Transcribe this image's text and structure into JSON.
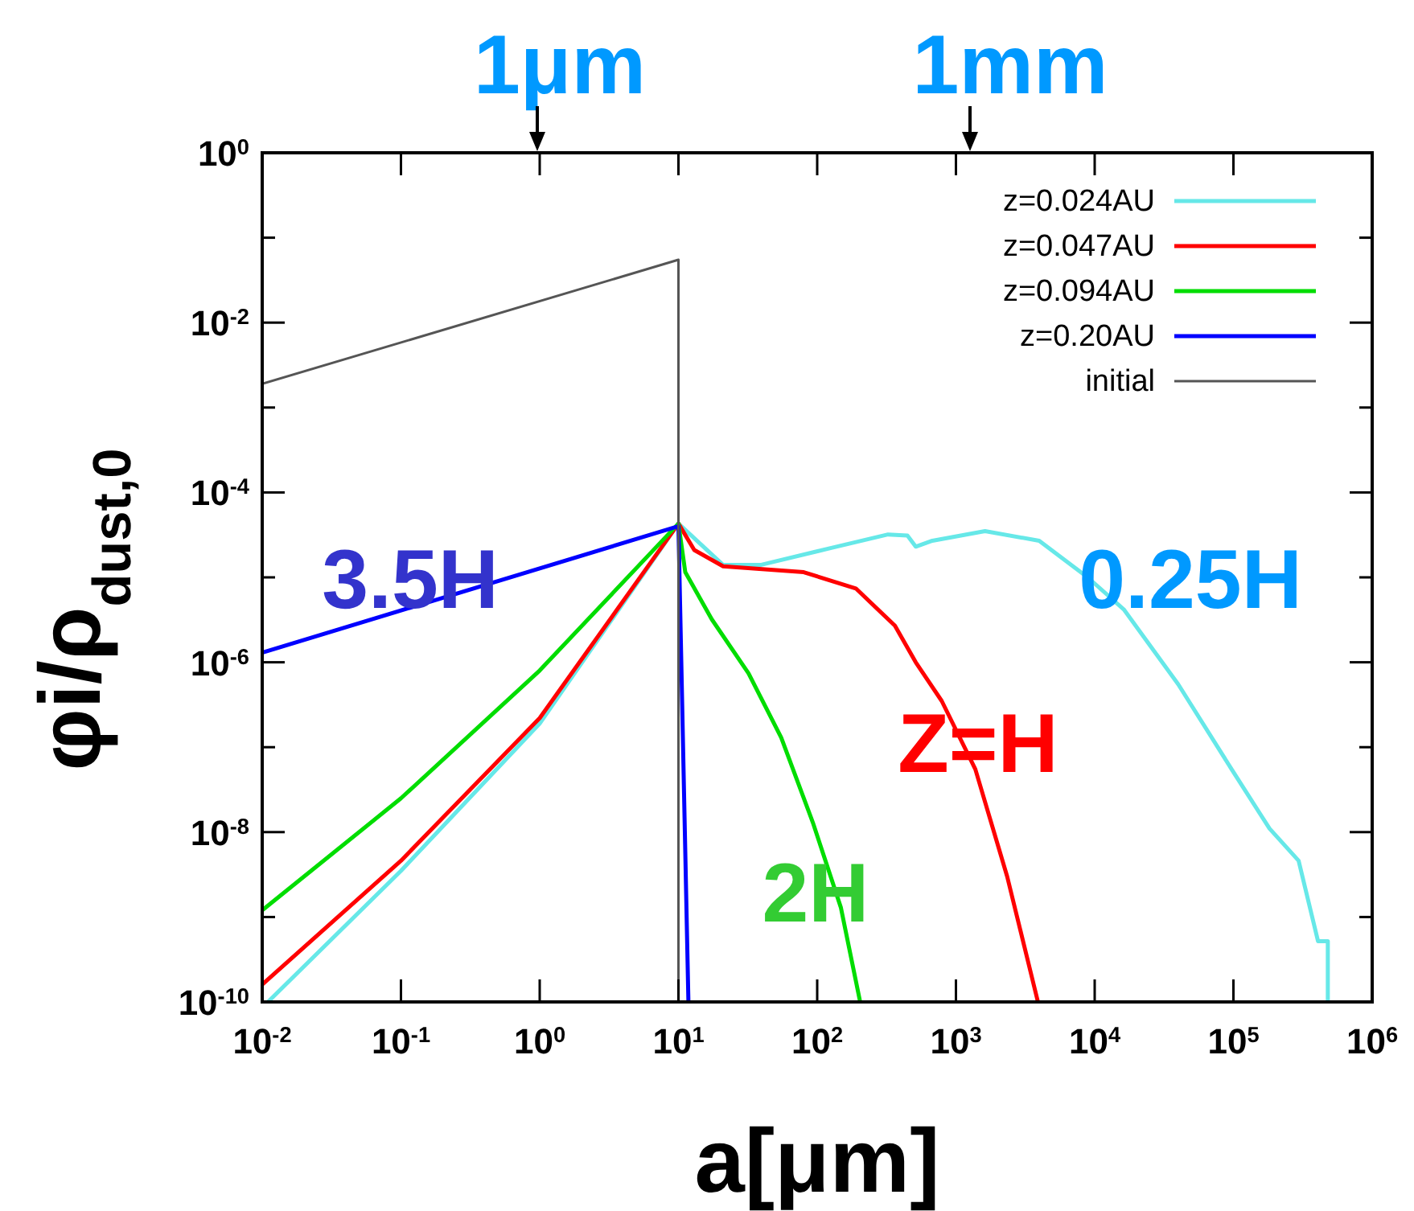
{
  "chart_data": {
    "type": "line",
    "xlabel": "a[μm]",
    "ylabel": "φi/ρ$_{dust,0}$",
    "log": "xy",
    "grid": false,
    "legend": "top right",
    "marker": "none",
    "line_style": "solid",
    "xlim": [
      0.01,
      1000000
    ],
    "ylim": [
      1e-10,
      1
    ],
    "xticks": [
      {
        "value": 0.01,
        "label": "10$^{-2}$"
      },
      {
        "value": 0.1,
        "label": "10$^{-1}$"
      },
      {
        "value": 1,
        "label": "10$^{0}$"
      },
      {
        "value": 10,
        "label": "10$^{1}$"
      },
      {
        "value": 100,
        "label": "10$^{2}$"
      },
      {
        "value": 1000,
        "label": "10$^{3}$"
      },
      {
        "value": 10000,
        "label": "10$^{4}$"
      },
      {
        "value": 100000,
        "label": "10$^{5}$"
      },
      {
        "value": 1000000,
        "label": "10$^{6}$"
      }
    ],
    "yticks": [
      {
        "value": 1e-10,
        "label": "10$^{-10}$"
      },
      {
        "value": 1e-09,
        "label": null
      },
      {
        "value": 1e-08,
        "label": "10$^{-8}$"
      },
      {
        "value": 1e-07,
        "label": null
      },
      {
        "value": 1e-06,
        "label": "10$^{-6}$"
      },
      {
        "value": 1e-05,
        "label": null
      },
      {
        "value": 0.0001,
        "label": "10$^{-4}$"
      },
      {
        "value": 0.001,
        "label": null
      },
      {
        "value": 0.01,
        "label": "10$^{-2}$"
      },
      {
        "value": 0.1,
        "label": null
      },
      {
        "value": 1,
        "label": "10$^{0}$"
      }
    ],
    "series": [
      {
        "name": "z=0.024AU",
        "color": "#66e8e8",
        "x": [
          0.011,
          0.1,
          1,
          10,
          21,
          39,
          123,
          324,
          447,
          513,
          676,
          1620,
          3980,
          8900,
          16200,
          40000,
          97000,
          182000,
          295000,
          407000,
          479000,
          479000
        ],
        "values": [
          1e-10,
          3.5e-09,
          1.9e-07,
          4.3e-05,
          1.4e-05,
          1.4e-05,
          2.2e-05,
          3.2e-05,
          3.1e-05,
          2.3e-05,
          2.7e-05,
          3.5e-05,
          2.7e-05,
          1e-05,
          4.2e-06,
          5.5e-07,
          5.5e-08,
          1.1e-08,
          4.6e-09,
          5.2e-10,
          5.2e-10,
          1e-10
        ]
      },
      {
        "name": "z=0.047AU",
        "color": "#ff0000",
        "x": [
          0.01,
          0.1,
          1,
          10,
          13,
          21,
          80,
          190,
          363,
          513,
          790,
          1380,
          2340,
          3900
        ],
        "values": [
          1.6e-10,
          4.6e-09,
          2.2e-07,
          4.3e-05,
          2.1e-05,
          1.35e-05,
          1.15e-05,
          7.4e-06,
          2.7e-06,
          1e-06,
          3.5e-07,
          5.5e-08,
          3e-09,
          1e-10
        ]
      },
      {
        "name": "z=0.094AU",
        "color": "#00dd00",
        "x": [
          0.01,
          0.1,
          1,
          10,
          11.2,
          17.4,
          32,
          55,
          93,
          148,
          204
        ],
        "values": [
          1.2e-09,
          2.5e-08,
          8e-07,
          4.3e-05,
          1.15e-05,
          3.2e-06,
          7.4e-07,
          1.3e-07,
          1.3e-08,
          1.3e-09,
          1e-10
        ]
      },
      {
        "name": "z=0.20AU",
        "color": "#0000ff",
        "x": [
          0.01,
          10,
          11.8
        ],
        "values": [
          1.3e-06,
          4e-05,
          1e-10
        ]
      },
      {
        "name": "initial",
        "color": "#555555",
        "x": [
          0.01,
          10,
          10
        ],
        "values": [
          0.0019,
          0.055,
          1e-10
        ]
      }
    ],
    "annotations": [
      "1μm",
      "1mm",
      "3.5H",
      "0.25H",
      "Z=H",
      "2H"
    ]
  }
}
